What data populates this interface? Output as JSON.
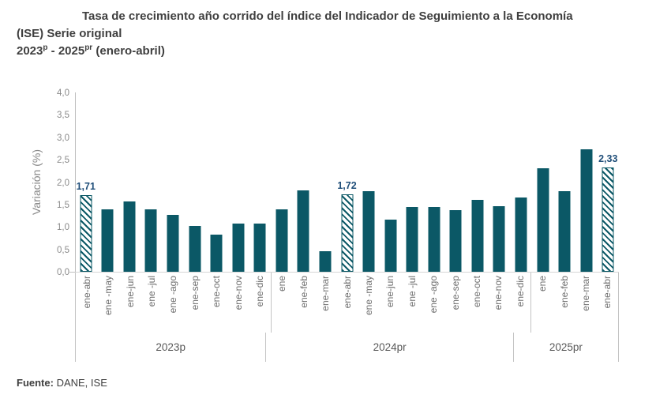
{
  "header": {
    "title_line1": "Tasa de crecimiento año corrido del índice del Indicador de Seguimiento a la Economía",
    "title_line2": "(ISE) Serie original",
    "subtitle": {
      "year_start": "2023",
      "year_start_sup": "p",
      "separator": " - ",
      "year_end": "2025",
      "year_end_sup": "pr",
      "suffix": " (enero-abril)"
    }
  },
  "footer": {
    "source_label": "Fuente:",
    "source_value": " DANE, ISE"
  },
  "chart_data": {
    "type": "bar",
    "title": "Tasa de crecimiento año corrido del índice del Indicador de Seguimiento a la Economía (ISE) Serie original 2023p - 2025pr (enero-abril)",
    "xlabel": "",
    "ylabel": "Variación (%)",
    "ylim": [
      0,
      4
    ],
    "ytick_step": 0.5,
    "ytick_labels": [
      "0,0",
      "0,5",
      "1,0",
      "1,5",
      "2,0",
      "2,5",
      "3,0",
      "3,5",
      "4,0"
    ],
    "grid": false,
    "legend": false,
    "bar_color": "#0b5866",
    "annotation_color": "#1f4e79",
    "axis_color": "#bfbfbf",
    "groups": [
      {
        "label": "2023p",
        "bars": [
          {
            "category": "ene-abr",
            "value": 1.71,
            "hatched": true,
            "annotation": "1,71"
          },
          {
            "category": "ene -may",
            "value": 1.39,
            "hatched": false,
            "annotation": ""
          },
          {
            "category": "ene-jun",
            "value": 1.56,
            "hatched": false,
            "annotation": ""
          },
          {
            "category": "ene -jul",
            "value": 1.4,
            "hatched": false,
            "annotation": ""
          },
          {
            "category": "ene -ago",
            "value": 1.27,
            "hatched": false,
            "annotation": ""
          },
          {
            "category": "ene-sep",
            "value": 1.03,
            "hatched": false,
            "annotation": ""
          },
          {
            "category": "ene-oct",
            "value": 0.82,
            "hatched": false,
            "annotation": ""
          },
          {
            "category": "ene-nov",
            "value": 1.07,
            "hatched": false,
            "annotation": ""
          },
          {
            "category": "ene-dic",
            "value": 1.07,
            "hatched": false,
            "annotation": ""
          }
        ]
      },
      {
        "label": "2024pr",
        "bars": [
          {
            "category": "ene",
            "value": 1.39,
            "hatched": false,
            "annotation": ""
          },
          {
            "category": "ene-feb",
            "value": 1.82,
            "hatched": false,
            "annotation": ""
          },
          {
            "category": "ene-mar",
            "value": 0.46,
            "hatched": false,
            "annotation": ""
          },
          {
            "category": "ene-abr",
            "value": 1.72,
            "hatched": true,
            "annotation": "1,72"
          },
          {
            "category": "ene -may",
            "value": 1.79,
            "hatched": false,
            "annotation": ""
          },
          {
            "category": "ene-jun",
            "value": 1.17,
            "hatched": false,
            "annotation": ""
          },
          {
            "category": "ene -jul",
            "value": 1.45,
            "hatched": false,
            "annotation": ""
          },
          {
            "category": "ene -ago",
            "value": 1.44,
            "hatched": false,
            "annotation": ""
          },
          {
            "category": "ene-sep",
            "value": 1.37,
            "hatched": false,
            "annotation": ""
          },
          {
            "category": "ene-oct",
            "value": 1.6,
            "hatched": false,
            "annotation": ""
          },
          {
            "category": "ene-nov",
            "value": 1.47,
            "hatched": false,
            "annotation": ""
          },
          {
            "category": "ene-dic",
            "value": 1.65,
            "hatched": false,
            "annotation": ""
          }
        ]
      },
      {
        "label": "2025pr",
        "bars": [
          {
            "category": "ene",
            "value": 2.3,
            "hatched": false,
            "annotation": ""
          },
          {
            "category": "ene-feb",
            "value": 1.79,
            "hatched": false,
            "annotation": ""
          },
          {
            "category": "ene-mar",
            "value": 2.74,
            "hatched": false,
            "annotation": ""
          },
          {
            "category": "ene-abr",
            "value": 2.33,
            "hatched": true,
            "annotation": "2,33"
          }
        ]
      }
    ]
  }
}
